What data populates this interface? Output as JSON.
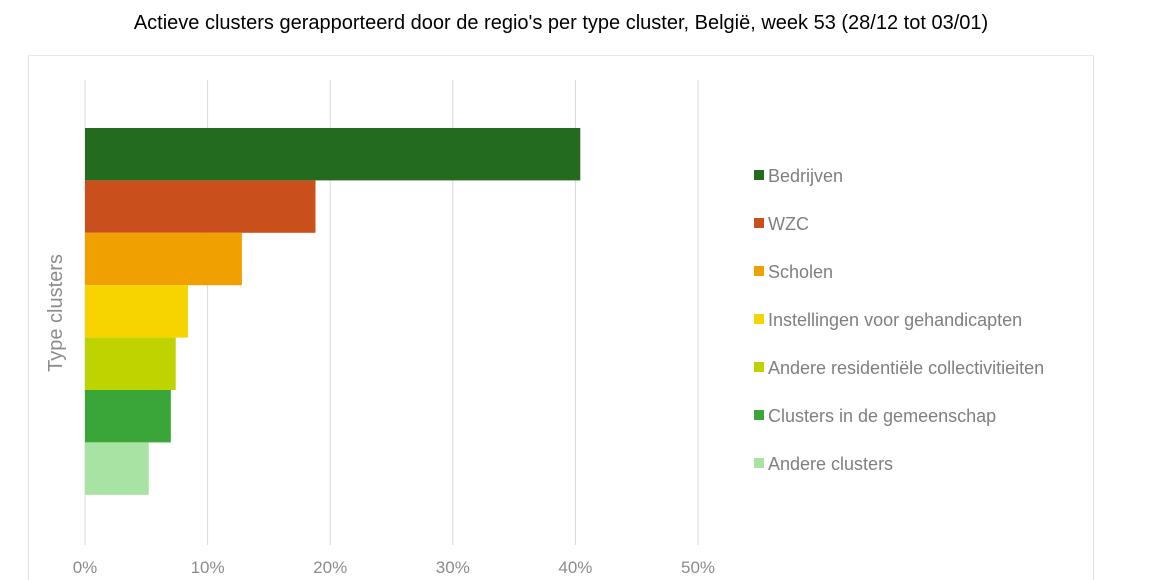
{
  "chart_data": {
    "type": "bar",
    "orientation": "horizontal",
    "title": "Actieve clusters gerapporteerd door de regio's per type cluster, België, week 53 (28/12 tot 03/01)",
    "ylabel": "Type clusters",
    "xlabel": "",
    "xlim": [
      0,
      50
    ],
    "x_ticks": [
      "0%",
      "10%",
      "20%",
      "30%",
      "40%",
      "50%"
    ],
    "x_tick_values": [
      0,
      10,
      20,
      30,
      40,
      50
    ],
    "grid": "vertical",
    "legend_position": "right",
    "series": [
      {
        "name": "Bedrijven",
        "value": 40.4,
        "color": "#236b1f"
      },
      {
        "name": "WZC",
        "value": 18.8,
        "color": "#c9501c"
      },
      {
        "name": "Scholen",
        "value": 12.8,
        "color": "#f0a000"
      },
      {
        "name": "Instellingen voor gehandicapten",
        "value": 8.4,
        "color": "#f7d300"
      },
      {
        "name": "Andere residentiële collectivitieiten",
        "value": 7.4,
        "color": "#bed300"
      },
      {
        "name": "Clusters in de gemeenschap",
        "value": 7.0,
        "color": "#3aa639"
      },
      {
        "name": "Andere clusters",
        "value": 5.2,
        "color": "#a8e3a3"
      }
    ]
  }
}
